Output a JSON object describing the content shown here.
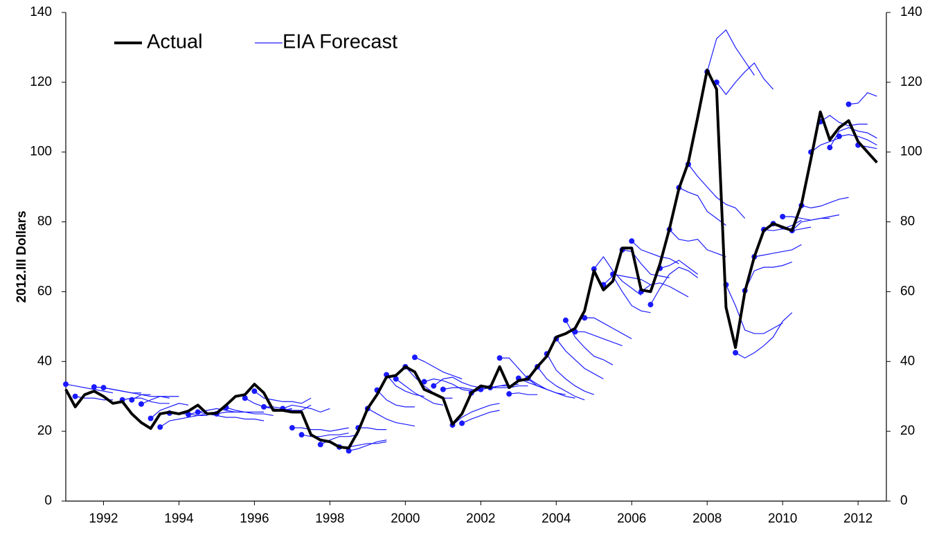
{
  "chart_data": {
    "type": "line",
    "y_label": "2012.III Dollars",
    "xlim": [
      1991,
      2012.75
    ],
    "xticks": [
      1992,
      1994,
      1996,
      1998,
      2000,
      2002,
      2004,
      2006,
      2008,
      2010,
      2012
    ],
    "ylim": [
      0,
      140
    ],
    "yticks": [
      0,
      20,
      40,
      60,
      80,
      100,
      120,
      140
    ],
    "y2lim": [
      0,
      140
    ],
    "y2ticks": [
      0,
      20,
      40,
      60,
      80,
      100,
      120,
      140
    ],
    "x": [
      1991,
      1991.25,
      1991.5,
      1991.75,
      1992,
      1992.25,
      1992.5,
      1992.75,
      1993,
      1993.25,
      1993.5,
      1993.75,
      1994,
      1994.25,
      1994.5,
      1994.75,
      1995,
      1995.25,
      1995.5,
      1995.75,
      1996,
      1996.25,
      1996.5,
      1996.75,
      1997,
      1997.25,
      1997.5,
      1997.75,
      1998,
      1998.25,
      1998.5,
      1998.75,
      1999,
      1999.25,
      1999.5,
      1999.75,
      2000,
      2000.25,
      2000.5,
      2000.75,
      2001,
      2001.25,
      2001.5,
      2001.75,
      2002,
      2002.25,
      2002.5,
      2002.75,
      2003,
      2003.25,
      2003.5,
      2003.75,
      2004,
      2004.25,
      2004.5,
      2004.75,
      2005,
      2005.25,
      2005.5,
      2005.75,
      2006,
      2006.25,
      2006.5,
      2006.75,
      2007,
      2007.25,
      2007.5,
      2007.75,
      2008,
      2008.25,
      2008.5,
      2008.75,
      2009,
      2009.25,
      2009.5,
      2009.75,
      2010,
      2010.25,
      2010.5,
      2010.75,
      2011,
      2011.25,
      2011.5,
      2011.75,
      2012,
      2012.25,
      2012.5
    ],
    "series": [
      {
        "name": "Actual",
        "color": "#000000",
        "values": [
          32,
          27,
          30.5,
          31.5,
          30,
          28,
          28.5,
          25,
          22.5,
          20.8,
          25,
          25.5,
          25,
          25.8,
          27.5,
          25,
          25.2,
          27.5,
          30,
          30.5,
          33.5,
          31,
          26,
          26,
          25.5,
          25.5,
          19,
          17.5,
          17,
          15.5,
          15.2,
          20,
          26.5,
          30.5,
          35.5,
          36,
          38.5,
          37,
          32,
          30.8,
          29.5,
          22,
          25,
          31,
          33,
          32.5,
          38.5,
          32.5,
          34.5,
          35,
          38.5,
          41.5,
          47,
          48,
          49.5,
          54.5,
          66,
          60.5,
          63,
          72.5,
          72.5,
          60.5,
          60,
          68,
          78,
          89.5,
          97,
          110,
          123.5,
          118,
          55.5,
          44,
          60,
          70,
          77.5,
          79.5,
          78.5,
          77.5,
          85,
          98,
          111.5,
          103.5,
          107,
          109,
          103,
          100,
          97
        ]
      },
      {
        "name": "EIA Forecast",
        "color": "#1a1aff",
        "runs": [
          {
            "start": 1991,
            "values": [
              33.5,
              33,
              32.5,
              32,
              31.5,
              31
            ]
          },
          {
            "start": 1991.25,
            "values": [
              30,
              29.5,
              29.5,
              29,
              29
            ]
          },
          {
            "start": 1991.75,
            "values": [
              32.7,
              32.5,
              32,
              31.5,
              31,
              31
            ]
          },
          {
            "start": 1992,
            "values": [
              32.5,
              32,
              31.5,
              31,
              30.5,
              30.5
            ]
          },
          {
            "start": 1992.5,
            "values": [
              29,
              29.5,
              29.5,
              28.5,
              28,
              28
            ]
          },
          {
            "start": 1992.75,
            "values": [
              29,
              30.5,
              30,
              30,
              29.5
            ]
          },
          {
            "start": 1993,
            "values": [
              27.8,
              29,
              30,
              30,
              30
            ]
          },
          {
            "start": 1993.25,
            "values": [
              23.7,
              26,
              27,
              28,
              27.5
            ]
          },
          {
            "start": 1993.5,
            "values": [
              21.2,
              23,
              23.5,
              24,
              24.5,
              25,
              25
            ]
          },
          {
            "start": 1993.75,
            "values": [
              25.2,
              25,
              25,
              24.5,
              24.5
            ]
          },
          {
            "start": 1994.25,
            "values": [
              24.8,
              25.5,
              26,
              26.5,
              26,
              25.5
            ]
          },
          {
            "start": 1994.5,
            "values": [
              25.5,
              25,
              24.5,
              24,
              24,
              23.5,
              23.5,
              23
            ]
          },
          {
            "start": 1995,
            "values": [
              25,
              25.5,
              25.5,
              25.5,
              25.5,
              25.5
            ]
          },
          {
            "start": 1995.25,
            "values": [
              26.8,
              26,
              25.5,
              25,
              25,
              24.5
            ]
          },
          {
            "start": 1995.75,
            "values": [
              29.5,
              28,
              27,
              26.5,
              26,
              26.5
            ]
          },
          {
            "start": 1996,
            "values": [
              31.5,
              29.5,
              29,
              28.5,
              28.5,
              28,
              29.5
            ]
          },
          {
            "start": 1996.25,
            "values": [
              27,
              27,
              26.5,
              26,
              26,
              27.5
            ]
          },
          {
            "start": 1996.75,
            "values": [
              26.5,
              27.5,
              27,
              26.5,
              25.5,
              26.5
            ]
          },
          {
            "start": 1997,
            "values": [
              21,
              21,
              20.5,
              20.5,
              20,
              20.5,
              21
            ]
          },
          {
            "start": 1997.25,
            "values": [
              19,
              18.5,
              18.5,
              19,
              19,
              19.5
            ]
          },
          {
            "start": 1997.75,
            "values": [
              16.2,
              17.5,
              18.5,
              18.5,
              19
            ]
          },
          {
            "start": 1998.25,
            "values": [
              15.5,
              15.5,
              16,
              16.5,
              16.5,
              17
            ]
          },
          {
            "start": 1998.5,
            "values": [
              14.4,
              15,
              16,
              17,
              17.5
            ]
          },
          {
            "start": 1998.75,
            "values": [
              21,
              21,
              20.5,
              20.5
            ]
          },
          {
            "start": 1999,
            "values": [
              26.5,
              25,
              23.5,
              22.5,
              22,
              21.5
            ]
          },
          {
            "start": 1999.25,
            "values": [
              31.8,
              29,
              27.5,
              27,
              27
            ]
          },
          {
            "start": 1999.5,
            "values": [
              36.2,
              33,
              31.5,
              30.5,
              30
            ]
          },
          {
            "start": 1999.75,
            "values": [
              35,
              33,
              31,
              29.5,
              28,
              27.5
            ]
          },
          {
            "start": 2000,
            "values": [
              38.5,
              35.5,
              33,
              31,
              29.5,
              29.5
            ]
          },
          {
            "start": 2000.25,
            "values": [
              41.2,
              40,
              38.5,
              37,
              36,
              35
            ]
          },
          {
            "start": 2000.5,
            "values": [
              34.2,
              35,
              34.5,
              33.5,
              32,
              31.5
            ]
          },
          {
            "start": 2000.75,
            "values": [
              33,
              35,
              35.5,
              34,
              33,
              32.5
            ]
          },
          {
            "start": 2001,
            "values": [
              32,
              32.5,
              32.5,
              32,
              31.5
            ]
          },
          {
            "start": 2001.25,
            "values": [
              21.8,
              24,
              25.5,
              26.5,
              27.5,
              28
            ]
          },
          {
            "start": 2001.5,
            "values": [
              22.3,
              23.5,
              24.5,
              25.5,
              26
            ]
          },
          {
            "start": 2001.75,
            "values": [
              31,
              32,
              32.5,
              33,
              33.5
            ]
          },
          {
            "start": 2002,
            "values": [
              32,
              32.5,
              33,
              33,
              33.5
            ]
          },
          {
            "start": 2002.25,
            "values": [
              32.5,
              32.5,
              32.5,
              33,
              33
            ]
          },
          {
            "start": 2002.5,
            "values": [
              41,
              41,
              38,
              35,
              33,
              32
            ]
          },
          {
            "start": 2002.75,
            "values": [
              30.7,
              31,
              30.5,
              30.5
            ]
          },
          {
            "start": 2003,
            "values": [
              35.2,
              34,
              33,
              32,
              31,
              30.5
            ]
          },
          {
            "start": 2003.25,
            "values": [
              35.2,
              33.5,
              32,
              31,
              30,
              29.5
            ]
          },
          {
            "start": 2003.5,
            "values": [
              38.5,
              35,
              33,
              31.5,
              30,
              29
            ]
          },
          {
            "start": 2003.75,
            "values": [
              42.2,
              37.5,
              35,
              33,
              31.5,
              30.5
            ]
          },
          {
            "start": 2004,
            "values": [
              46.5,
              43,
              40.5,
              38,
              36.5,
              35
            ]
          },
          {
            "start": 2004.25,
            "values": [
              51.8,
              47,
              44,
              41.5,
              40.5,
              39
            ]
          },
          {
            "start": 2004.5,
            "values": [
              48.5,
              48.5,
              47.5,
              46.5,
              45.5,
              44.5
            ]
          },
          {
            "start": 2004.75,
            "values": [
              52.5,
              52.5,
              51,
              49.5,
              48,
              46.5
            ]
          },
          {
            "start": 2005,
            "values": [
              66.5,
              70,
              66,
              63,
              61,
              59
            ]
          },
          {
            "start": 2005.25,
            "values": [
              62,
              64.5,
              60,
              56,
              54.5,
              54
            ]
          },
          {
            "start": 2005.5,
            "values": [
              65,
              64.5,
              64,
              63.5,
              62
            ]
          },
          {
            "start": 2005.75,
            "values": [
              72,
              71.5,
              68,
              65,
              64.5,
              64
            ]
          },
          {
            "start": 2006,
            "values": [
              74.5,
              72,
              71,
              70,
              69.5,
              68
            ]
          },
          {
            "start": 2006.25,
            "values": [
              60,
              62,
              62.5,
              61.5,
              60,
              58.5
            ]
          },
          {
            "start": 2006.5,
            "values": [
              56.3,
              61,
              65,
              67,
              66,
              64
            ]
          },
          {
            "start": 2006.75,
            "values": [
              66.7,
              67.5,
              69,
              67,
              65
            ]
          },
          {
            "start": 2007,
            "values": [
              77.8,
              75,
              74.5,
              75,
              72,
              71,
              70
            ]
          },
          {
            "start": 2007.25,
            "values": [
              89.8,
              88.5,
              87.5,
              83,
              81,
              79
            ]
          },
          {
            "start": 2007.5,
            "values": [
              96.5,
              93,
              90,
              87,
              85,
              84,
              81
            ]
          },
          {
            "start": 2008,
            "values": [
              123,
              132.5,
              135,
              130,
              126,
              122
            ]
          },
          {
            "start": 2008.25,
            "values": [
              120,
              116.5,
              120,
              123,
              125.5,
              121,
              118
            ]
          },
          {
            "start": 2008.5,
            "values": [
              62,
              56,
              49,
              48,
              48,
              49.5,
              51
            ]
          },
          {
            "start": 2008.75,
            "values": [
              42.5,
              41,
              42.5,
              44.5,
              47,
              51.5,
              54
            ]
          },
          {
            "start": 2009,
            "values": [
              60.3,
              66,
              67,
              67,
              67.5,
              68.5
            ]
          },
          {
            "start": 2009.25,
            "values": [
              70,
              70.5,
              71,
              71.5,
              72,
              73.5
            ]
          },
          {
            "start": 2009.5,
            "values": [
              77.8,
              77.5,
              78,
              79,
              80.5
            ]
          },
          {
            "start": 2009.75,
            "values": [
              79.5,
              78,
              77.5,
              78,
              78.5
            ]
          },
          {
            "start": 2010,
            "values": [
              81.5,
              81.5,
              81,
              80.5,
              81,
              81
            ]
          },
          {
            "start": 2010.25,
            "values": [
              77.5,
              80,
              80.5,
              81,
              81.5,
              82
            ]
          },
          {
            "start": 2010.5,
            "values": [
              84.7,
              84,
              84.5,
              85.5,
              86.5,
              87
            ]
          },
          {
            "start": 2010.75,
            "values": [
              100,
              102,
              103,
              104
            ]
          },
          {
            "start": 2011,
            "values": [
              108.7,
              110.5,
              108.5,
              107.5,
              108,
              108
            ]
          },
          {
            "start": 2011.25,
            "values": [
              101.3,
              106,
              107,
              106,
              105.5,
              104
            ]
          },
          {
            "start": 2011.5,
            "values": [
              104.5,
              105,
              104.5,
              103.5,
              102
            ]
          },
          {
            "start": 2011.75,
            "values": [
              113.7,
              114,
              117,
              116
            ]
          },
          {
            "start": 2012,
            "values": [
              102,
              101.5,
              101
            ]
          }
        ]
      }
    ]
  }
}
